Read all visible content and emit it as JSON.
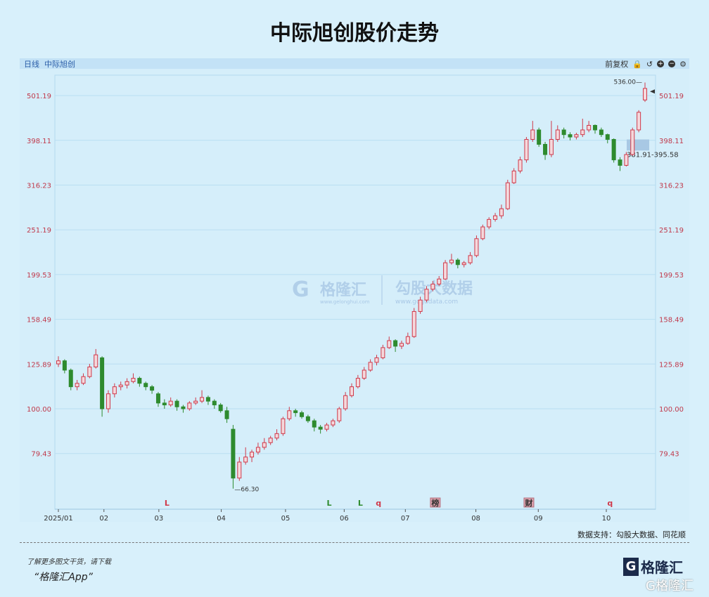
{
  "title": "中际旭创股价走势",
  "header": {
    "period": "日线",
    "stock": "中际旭创",
    "adjust": "前复权",
    "icons": [
      "lock-icon",
      "undo-icon",
      "zoom-in-icon",
      "zoom-out-icon",
      "settings-icon"
    ]
  },
  "colors": {
    "up": "#d0394a",
    "down": "#2e8b2e",
    "axis_label": "#c0394b",
    "grid": "#b9def2"
  },
  "chart_data": {
    "type": "candlestick",
    "y_scale": "log",
    "ylim": [
      62,
      560
    ],
    "y_ticks": [
      "79.43",
      "100.00",
      "125.89",
      "158.49",
      "199.53",
      "251.19",
      "316.23",
      "398.11",
      "501.19"
    ],
    "x_ticks": [
      {
        "label": "2025/01",
        "index": 0
      },
      {
        "label": "02",
        "index": 7.3
      },
      {
        "label": "03",
        "index": 16.1
      },
      {
        "label": "04",
        "index": 26.1
      },
      {
        "label": "05",
        "index": 36.4
      },
      {
        "label": "06",
        "index": 45.8
      },
      {
        "label": "07",
        "index": 55.6
      },
      {
        "label": "08",
        "index": 66.9
      },
      {
        "label": "09",
        "index": 76.9
      },
      {
        "label": "10",
        "index": 87.8
      }
    ],
    "candles_ohlc": [
      [
        126,
        131,
        124,
        128
      ],
      [
        128,
        129,
        120,
        122
      ],
      [
        122,
        123,
        110,
        112
      ],
      [
        112,
        116,
        110,
        114
      ],
      [
        114,
        120,
        113,
        118
      ],
      [
        118,
        126,
        117,
        124
      ],
      [
        124,
        136,
        123,
        132
      ],
      [
        130,
        131,
        96,
        100
      ],
      [
        100,
        110,
        98,
        108
      ],
      [
        108,
        114,
        106,
        112
      ],
      [
        112,
        115,
        110,
        113
      ],
      [
        113,
        117,
        111,
        115
      ],
      [
        115,
        120,
        114,
        117
      ],
      [
        117,
        118,
        112,
        114
      ],
      [
        114,
        115,
        110,
        112
      ],
      [
        112,
        113,
        108,
        110
      ],
      [
        108,
        109,
        101,
        103
      ],
      [
        103,
        105,
        100,
        102
      ],
      [
        102,
        106,
        101,
        104
      ],
      [
        104,
        105,
        99,
        101
      ],
      [
        101,
        102,
        98,
        100
      ],
      [
        100,
        104,
        99,
        103
      ],
      [
        103,
        106,
        102,
        104
      ],
      [
        104,
        110,
        103,
        106
      ],
      [
        106,
        107,
        102,
        104
      ],
      [
        104,
        105,
        100,
        102
      ],
      [
        102,
        103,
        98,
        99
      ],
      [
        99,
        101,
        93,
        95
      ],
      [
        90,
        92,
        66.3,
        70
      ],
      [
        70,
        78,
        69,
        76
      ],
      [
        76,
        82,
        75,
        78
      ],
      [
        78,
        81,
        76,
        80
      ],
      [
        80,
        84,
        79,
        82
      ],
      [
        82,
        86,
        81,
        84
      ],
      [
        84,
        87,
        83,
        86
      ],
      [
        86,
        90,
        85,
        88
      ],
      [
        88,
        96,
        87,
        95
      ],
      [
        95,
        101,
        94,
        99
      ],
      [
        99,
        100,
        96,
        98
      ],
      [
        98,
        99,
        95,
        96
      ],
      [
        96,
        97,
        93,
        94
      ],
      [
        94,
        95,
        89,
        91
      ],
      [
        91,
        92,
        88,
        90
      ],
      [
        90,
        93,
        89,
        92
      ],
      [
        92,
        95,
        91,
        94
      ],
      [
        94,
        101,
        93,
        100
      ],
      [
        100,
        109,
        99,
        107
      ],
      [
        107,
        114,
        106,
        112
      ],
      [
        112,
        119,
        111,
        117
      ],
      [
        117,
        124,
        116,
        122
      ],
      [
        122,
        129,
        121,
        127
      ],
      [
        127,
        132,
        125,
        130
      ],
      [
        130,
        139,
        129,
        137
      ],
      [
        137,
        145,
        136,
        142
      ],
      [
        142,
        143,
        134,
        138
      ],
      [
        138,
        142,
        136,
        140
      ],
      [
        140,
        148,
        139,
        145
      ],
      [
        145,
        168,
        144,
        165
      ],
      [
        165,
        178,
        163,
        175
      ],
      [
        175,
        188,
        173,
        185
      ],
      [
        185,
        193,
        183,
        190
      ],
      [
        190,
        198,
        188,
        195
      ],
      [
        195,
        215,
        194,
        212
      ],
      [
        212,
        222,
        210,
        215
      ],
      [
        215,
        217,
        206,
        210
      ],
      [
        210,
        214,
        207,
        212
      ],
      [
        212,
        224,
        210,
        220
      ],
      [
        220,
        244,
        218,
        240
      ],
      [
        240,
        258,
        238,
        255
      ],
      [
        255,
        268,
        252,
        265
      ],
      [
        265,
        274,
        262,
        270
      ],
      [
        270,
        286,
        266,
        280
      ],
      [
        280,
        325,
        278,
        320
      ],
      [
        320,
        345,
        318,
        340
      ],
      [
        340,
        366,
        336,
        360
      ],
      [
        360,
        405,
        355,
        400
      ],
      [
        400,
        440,
        395,
        420
      ],
      [
        420,
        425,
        385,
        390
      ],
      [
        390,
        395,
        360,
        370
      ],
      [
        370,
        440,
        365,
        400
      ],
      [
        400,
        430,
        395,
        420
      ],
      [
        420,
        425,
        402,
        410
      ],
      [
        410,
        415,
        398,
        405
      ],
      [
        405,
        414,
        400,
        410
      ],
      [
        410,
        445,
        405,
        420
      ],
      [
        420,
        440,
        415,
        430
      ],
      [
        430,
        432,
        412,
        420
      ],
      [
        420,
        425,
        405,
        410
      ],
      [
        410,
        412,
        392,
        400
      ],
      [
        400,
        402,
        355,
        360
      ],
      [
        360,
        365,
        340,
        350
      ],
      [
        350,
        375,
        348,
        370
      ],
      [
        370,
        425,
        368,
        420
      ],
      [
        420,
        465,
        415,
        460
      ],
      [
        490,
        536,
        485,
        520
      ]
    ],
    "annotations": {
      "max_label": "536.00",
      "max_value": 536,
      "min_label": "66.30",
      "min_value": 66.3,
      "range_label": "381.91-395.58",
      "range": [
        381.91,
        395.58
      ],
      "current_marker": 512
    },
    "events": [
      {
        "label": "L",
        "index": 17.4,
        "color": "#d0394a",
        "boxed": false
      },
      {
        "label": "L",
        "index": 43.4,
        "color": "#2e8b2e",
        "boxed": false
      },
      {
        "label": "L",
        "index": 48.4,
        "color": "#2e8b2e",
        "boxed": false
      },
      {
        "label": "q",
        "index": 51.3,
        "color": "#d0394a",
        "boxed": false
      },
      {
        "label": "榜",
        "index": 60.4,
        "color": "#333",
        "boxed": true
      },
      {
        "label": "财",
        "index": 75.4,
        "color": "#333",
        "boxed": true
      },
      {
        "label": "q",
        "index": 88.4,
        "color": "#d0394a",
        "boxed": false
      }
    ],
    "watermark": {
      "brand": "格隆汇",
      "brand_url": "www.gelonghui.com",
      "data": "勾股大数据",
      "data_url": "www.gogudata.com"
    }
  },
  "footer": {
    "source": "数据支持：勾股大数据、同花顺",
    "promo": "了解更多图文干货，请下载",
    "app": "“格隆汇App”",
    "logo": "格隆汇",
    "logo2": "格隆汇"
  }
}
